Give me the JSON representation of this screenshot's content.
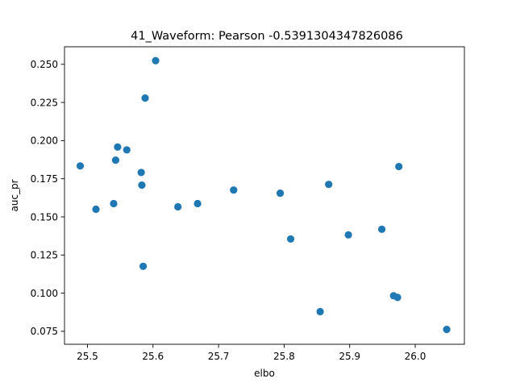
{
  "chart_data": {
    "type": "scatter",
    "title": "41_Waveform: Pearson -0.5391304347826086",
    "xlabel": "elbo",
    "ylabel": "auc_pr",
    "xlim": [
      25.465,
      26.075
    ],
    "ylim": [
      0.0665,
      0.2615
    ],
    "x_ticks": [
      25.5,
      25.6,
      25.7,
      25.8,
      25.9,
      26.0
    ],
    "x_tick_labels": [
      "25.5",
      "25.6",
      "25.7",
      "25.8",
      "25.9",
      "26.0"
    ],
    "y_ticks": [
      0.075,
      0.1,
      0.125,
      0.15,
      0.175,
      0.2,
      0.225,
      0.25
    ],
    "y_tick_labels": [
      "0.075",
      "0.100",
      "0.125",
      "0.150",
      "0.175",
      "0.200",
      "0.225",
      "0.250"
    ],
    "grid": false,
    "legend": "none",
    "marker_color": "#1f77b4",
    "points": [
      {
        "x": 25.489,
        "y": 0.1834
      },
      {
        "x": 25.513,
        "y": 0.155
      },
      {
        "x": 25.54,
        "y": 0.1587
      },
      {
        "x": 25.543,
        "y": 0.1872
      },
      {
        "x": 25.546,
        "y": 0.1958
      },
      {
        "x": 25.56,
        "y": 0.1939
      },
      {
        "x": 25.582,
        "y": 0.1791
      },
      {
        "x": 25.583,
        "y": 0.1708
      },
      {
        "x": 25.585,
        "y": 0.1176
      },
      {
        "x": 25.588,
        "y": 0.2279
      },
      {
        "x": 25.604,
        "y": 0.2524
      },
      {
        "x": 25.638,
        "y": 0.1566
      },
      {
        "x": 25.668,
        "y": 0.1587
      },
      {
        "x": 25.723,
        "y": 0.1676
      },
      {
        "x": 25.794,
        "y": 0.1655
      },
      {
        "x": 25.81,
        "y": 0.1355
      },
      {
        "x": 25.855,
        "y": 0.0879
      },
      {
        "x": 25.868,
        "y": 0.1713
      },
      {
        "x": 25.898,
        "y": 0.1382
      },
      {
        "x": 25.949,
        "y": 0.1419
      },
      {
        "x": 25.967,
        "y": 0.0983
      },
      {
        "x": 25.973,
        "y": 0.0972
      },
      {
        "x": 25.975,
        "y": 0.183
      },
      {
        "x": 26.048,
        "y": 0.0762
      }
    ]
  }
}
